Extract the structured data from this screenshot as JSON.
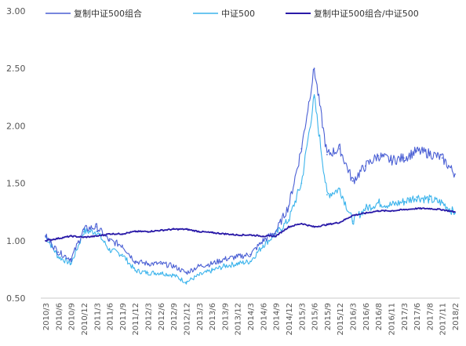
{
  "chart_data": {
    "type": "line",
    "title": "",
    "xlabel": "",
    "ylabel": "",
    "ylim": [
      0.5,
      3.0
    ],
    "y_ticks": [
      "0.50",
      "1.00",
      "1.50",
      "2.00",
      "2.50",
      "3.00"
    ],
    "x_ticks": [
      "2010/3",
      "2010/6",
      "2010/9",
      "2010/12",
      "2011/3",
      "2011/6",
      "2011/9",
      "2011/12",
      "2012/3",
      "2012/6",
      "2012/9",
      "2012/12",
      "2013/3",
      "2013/6",
      "2013/9",
      "2013/12",
      "2014/3",
      "2014/6",
      "2014/9",
      "2014/12",
      "2015/3",
      "2015/6",
      "2015/9",
      "2015/12",
      "2016/3",
      "2016/6",
      "2016/8",
      "2016/11",
      "2017/3",
      "2017/6",
      "2017/8",
      "2017/11",
      "2018/2"
    ],
    "grid": false,
    "legend_position": "top",
    "series": [
      {
        "name": "复制中证500组合",
        "color": "#4a5fd4",
        "values": [
          1.04,
          0.9,
          0.84,
          1.1,
          1.12,
          1.0,
          0.96,
          0.82,
          0.8,
          0.8,
          0.78,
          0.72,
          0.78,
          0.8,
          0.84,
          0.86,
          0.88,
          1.0,
          1.08,
          1.3,
          1.8,
          2.5,
          1.75,
          1.8,
          1.52,
          1.65,
          1.74,
          1.7,
          1.72,
          1.78,
          1.76,
          1.72,
          1.58
        ]
      },
      {
        "name": "中证500",
        "color": "#3cb4ec",
        "values": [
          1.04,
          0.86,
          0.8,
          1.08,
          1.08,
          0.92,
          0.88,
          0.74,
          0.72,
          0.72,
          0.7,
          0.64,
          0.7,
          0.74,
          0.78,
          0.8,
          0.82,
          0.96,
          1.06,
          1.18,
          1.5,
          2.25,
          1.4,
          1.45,
          1.17,
          1.28,
          1.33,
          1.31,
          1.34,
          1.38,
          1.36,
          1.33,
          1.24
        ]
      },
      {
        "name": "复制中证500组合/中证500",
        "color": "#2a1aa8",
        "values": [
          1.0,
          1.02,
          1.04,
          1.03,
          1.04,
          1.06,
          1.06,
          1.08,
          1.08,
          1.09,
          1.1,
          1.1,
          1.08,
          1.07,
          1.06,
          1.05,
          1.05,
          1.04,
          1.04,
          1.12,
          1.15,
          1.12,
          1.14,
          1.16,
          1.22,
          1.24,
          1.26,
          1.26,
          1.27,
          1.28,
          1.28,
          1.27,
          1.25
        ]
      }
    ]
  }
}
